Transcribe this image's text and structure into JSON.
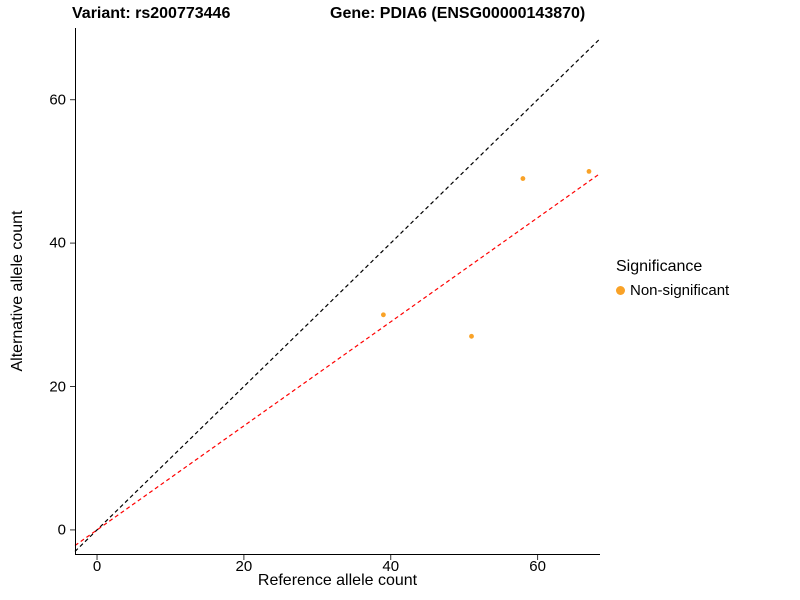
{
  "chart_data": {
    "type": "scatter",
    "title_left": "Variant: rs200773446",
    "title_right": "Gene: PDIA6 (ENSG00000143870)",
    "xlabel": "Reference allele count",
    "ylabel": "Alternative allele count",
    "xlim": [
      -3,
      68.5
    ],
    "ylim": [
      -3.5,
      70
    ],
    "xticks": [
      "0",
      "20",
      "40",
      "60"
    ],
    "xtick_values": [
      0,
      20,
      40,
      60
    ],
    "yticks": [
      "0",
      "20",
      "40",
      "60"
    ],
    "ytick_values": [
      0,
      20,
      40,
      60
    ],
    "grid": false,
    "background": "#ffffff",
    "points": [
      {
        "x": 39,
        "y": 30
      },
      {
        "x": 51,
        "y": 27
      },
      {
        "x": 58,
        "y": 49
      },
      {
        "x": 67,
        "y": 50
      }
    ],
    "point_color": "#F9A227",
    "point_radius": 2.4,
    "lines": [
      {
        "name": "identity",
        "slope": 1,
        "intercept": 0,
        "color": "#000000",
        "dashed": true
      },
      {
        "name": "allelic-ratio",
        "slope": 0.7256,
        "intercept": 0,
        "color": "#FF0000",
        "dashed": true
      }
    ],
    "legend": {
      "title": "Significance",
      "position": "right",
      "items": [
        {
          "label": "Non-significant",
          "color": "#F9A227"
        }
      ]
    }
  }
}
